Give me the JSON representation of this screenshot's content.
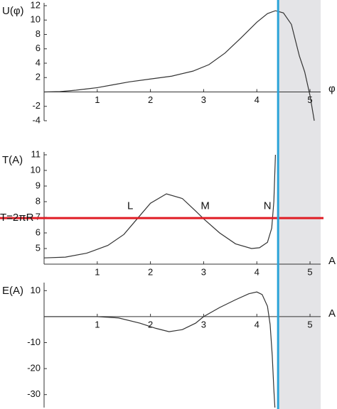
{
  "overlay": {
    "x": 4.4,
    "color": "#29a3d8",
    "shade": [
      4.4,
      5.2
    ],
    "shade_color": "#e4e4e7"
  },
  "chart_data": [
    {
      "type": "line",
      "ylabel": "U(φ)",
      "xlabel": "φ",
      "xlim": [
        0,
        5.2
      ],
      "ylim": [
        -4,
        12
      ],
      "xticks": [
        1,
        2,
        3,
        4,
        5
      ],
      "yticks": [
        -4,
        -2,
        2,
        4,
        6,
        8,
        10,
        12
      ],
      "x": [
        0,
        0.3,
        0.6,
        1,
        1.3,
        1.6,
        2,
        2.4,
        2.8,
        3.1,
        3.4,
        3.7,
        4,
        4.2,
        4.35,
        4.5,
        4.65,
        4.8,
        4.9,
        5,
        5.08
      ],
      "series": [
        {
          "color": "#333333",
          "values": [
            0,
            0.05,
            0.25,
            0.6,
            1,
            1.4,
            1.8,
            2.2,
            2.9,
            3.8,
            5.4,
            7.5,
            9.7,
            10.9,
            11.3,
            11,
            9.4,
            5,
            2.8,
            -0.5,
            -4
          ]
        }
      ]
    },
    {
      "type": "line",
      "ylabel": "T(A)",
      "xlabel": "A",
      "xlim": [
        0,
        5.2
      ],
      "ylim": [
        4,
        11
      ],
      "xticks": [
        1,
        2,
        3,
        4,
        5
      ],
      "yticks": [
        5,
        6,
        7,
        8,
        9,
        10,
        11
      ],
      "x": [
        0,
        0.4,
        0.8,
        1.2,
        1.5,
        1.75,
        2,
        2.3,
        2.6,
        2.85,
        3,
        3.3,
        3.6,
        3.9,
        4.05,
        4.2,
        4.28,
        4.32,
        4.35
      ],
      "series": [
        {
          "color": "#333333",
          "values": [
            4.4,
            4.45,
            4.7,
            5.2,
            5.9,
            6.9,
            7.9,
            8.5,
            8.2,
            7.4,
            6.9,
            6,
            5.3,
            5.0,
            5.05,
            5.4,
            6.3,
            8,
            11
          ]
        }
      ],
      "hline": {
        "y": 6.95,
        "color": "#e01c24",
        "label": "T=2πR"
      },
      "annotations": [
        {
          "text": "L",
          "x": 1.62,
          "y": 7.7
        },
        {
          "text": "M",
          "x": 3.03,
          "y": 7.7
        },
        {
          "text": "N",
          "x": 4.2,
          "y": 7.7
        }
      ]
    },
    {
      "type": "line",
      "ylabel": "E(A)",
      "xlabel": "A",
      "xlim": [
        0,
        5.2
      ],
      "ylim": [
        -35,
        12
      ],
      "xticks": [
        1,
        2,
        3,
        4,
        5
      ],
      "yticks": [
        -30,
        -20,
        -10,
        10
      ],
      "x": [
        0,
        0.5,
        1,
        1.4,
        1.8,
        2.1,
        2.35,
        2.6,
        2.85,
        3,
        3.3,
        3.6,
        3.85,
        4,
        4.1,
        4.2,
        4.25,
        4.29,
        4.32,
        4.34
      ],
      "series": [
        {
          "color": "#333333",
          "values": [
            0,
            0,
            0,
            -0.5,
            -2.5,
            -4.5,
            -5.8,
            -5,
            -2.5,
            0,
            3.5,
            6.5,
            8.8,
            9.5,
            8.5,
            4,
            -3,
            -15,
            -28,
            -35
          ]
        }
      ]
    }
  ]
}
